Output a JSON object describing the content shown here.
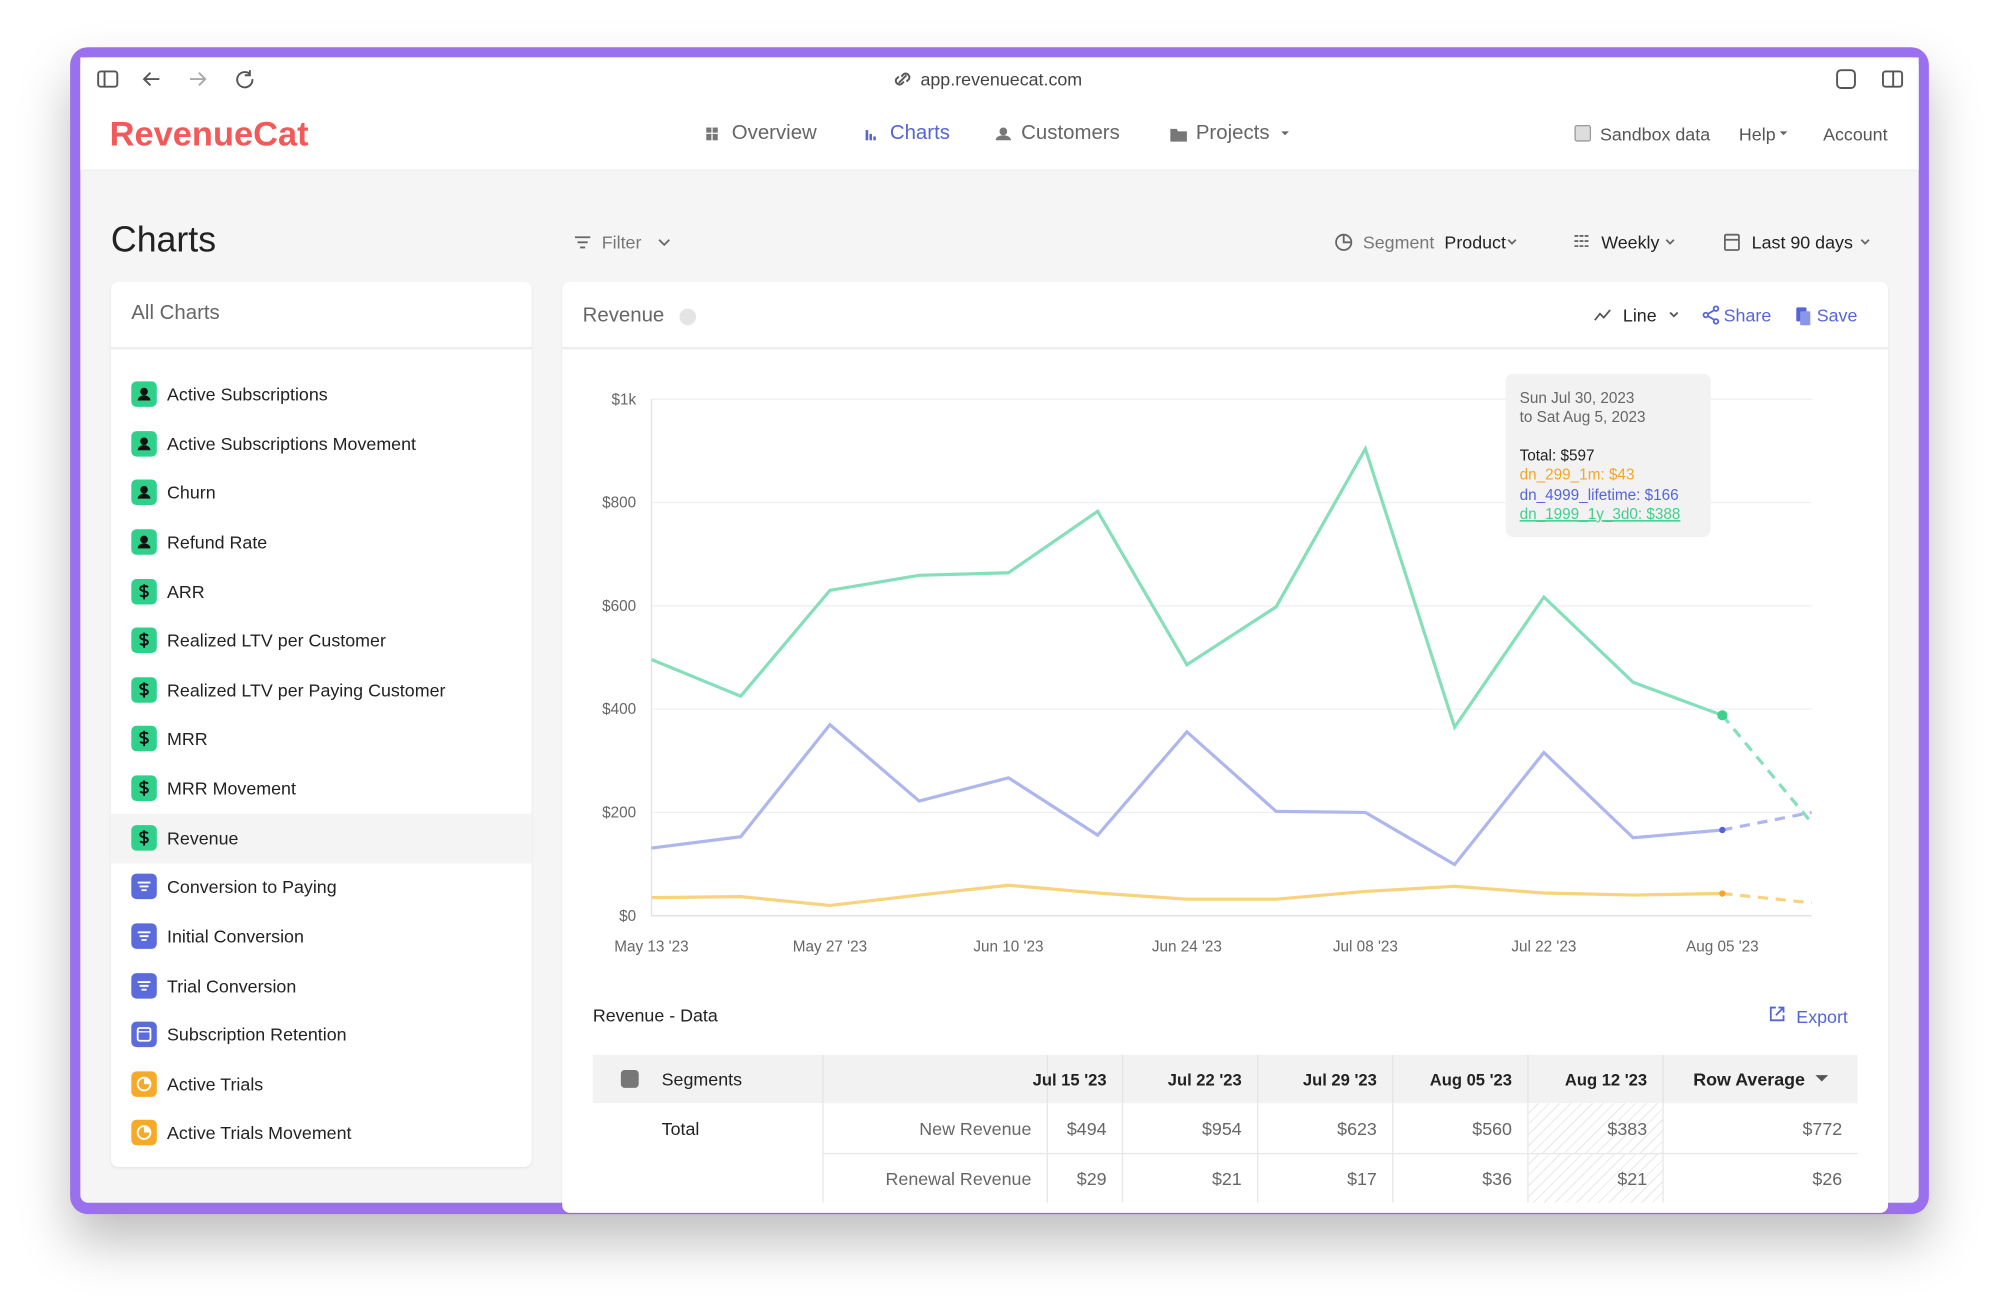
{
  "browser": {
    "url": "app.revenuecat.com"
  },
  "header": {
    "logo": "RevenueCat",
    "nav": [
      "Overview",
      "Charts",
      "Customers",
      "Projects"
    ],
    "sandbox": "Sandbox data",
    "help": "Help",
    "account": "Account"
  },
  "toolbar": {
    "title": "Charts",
    "filter": "Filter",
    "segment_label": "Segment",
    "segment_value": "Product",
    "interval": "Weekly",
    "range": "Last 90 days"
  },
  "sidebar": {
    "title": "All Charts",
    "items": [
      "Active Subscriptions",
      "Active Subscriptions Movement",
      "Churn",
      "Refund Rate",
      "ARR",
      "Realized LTV per Customer",
      "Realized LTV per Paying Customer",
      "MRR",
      "MRR Movement",
      "Revenue",
      "Conversion to Paying",
      "Initial Conversion",
      "Trial Conversion",
      "Subscription Retention",
      "Active Trials",
      "Active Trials Movement"
    ]
  },
  "card": {
    "style": "Line",
    "share": "Share",
    "save": "Save"
  },
  "chart_data": {
    "type": "line",
    "title": "Revenue",
    "categories": [
      "May 13 '23",
      null,
      "May 27 '23",
      null,
      "Jun 10 '23",
      null,
      "Jun 24 '23",
      null,
      "Jul 08 '23",
      null,
      "Jul 22 '23",
      null,
      "Aug 05 '23",
      null
    ],
    "series": [
      {
        "color": "#f8d27c",
        "marker_color": "#f5a623",
        "values": [
          35,
          37,
          20,
          40,
          59,
          44,
          32,
          32,
          47,
          57,
          44,
          40,
          43,
          25
        ]
      },
      {
        "color": "#aeb6ee",
        "marker_color": "#5564d8",
        "values": [
          131,
          153,
          370,
          222,
          267,
          156,
          356,
          202,
          200,
          99,
          316,
          151,
          166,
          200
        ]
      },
      {
        "color": "#85dfba",
        "marker_color": "#3fcf8e",
        "values": [
          496,
          425,
          630,
          659,
          664,
          783,
          486,
          598,
          904,
          365,
          617,
          452,
          388,
          180
        ]
      }
    ],
    "ylim": [
      0,
      1000
    ],
    "yticks": [
      {
        "value": 0,
        "label": "$0"
      },
      {
        "value": 200,
        "label": "$200"
      },
      {
        "value": 400,
        "label": "$400"
      },
      {
        "value": 600,
        "label": "$600"
      },
      {
        "value": 800,
        "label": "$800"
      },
      {
        "value": 1000,
        "label": "$1k"
      }
    ],
    "grid": true,
    "tooltip": {
      "lines": [
        "Sun Jul 30, 2023",
        "to Sat Aug 5, 2023",
        "Total: $597",
        "dn_299_1m: $43",
        "dn_4999_lifetime: $166",
        "dn_1999_1y_3d0: $388"
      ]
    }
  },
  "table": {
    "title": "Revenue - Data",
    "export": "Export",
    "segments_header": "Segments",
    "columns": [
      "Jul 15 '23",
      "Jul 22 '23",
      "Jul 29 '23",
      "Aug 05 '23",
      "Aug 12 '23",
      "Row Average"
    ],
    "rows": [
      {
        "segment": "Total",
        "metric": "New Revenue",
        "cells": [
          "$494",
          "$954",
          "$623",
          "$560",
          "$383",
          "$772"
        ]
      },
      {
        "metric": "Renewal Revenue",
        "cells": [
          "$29",
          "$21",
          "$17",
          "$36",
          "$21",
          "$26"
        ]
      }
    ]
  }
}
